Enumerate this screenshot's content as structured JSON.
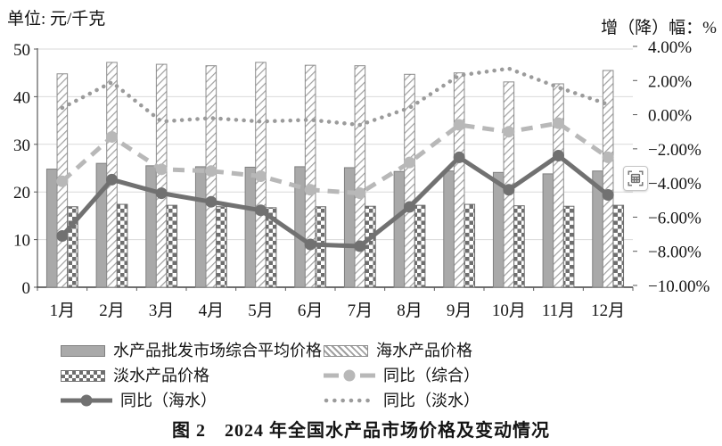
{
  "page": {
    "left_axis_title": "单位: 元/千克",
    "right_axis_title": "增（降）幅：%",
    "caption": "图 2　2024 年全国水产品市场价格及变动情况"
  },
  "overlay_button": {
    "icon": "table-capture-icon"
  },
  "chart_data": {
    "type": "bar+line combo",
    "title": "图 2  2024 年全国水产品市场价格及变动情况",
    "categories": [
      "1月",
      "2月",
      "3月",
      "4月",
      "5月",
      "6月",
      "7月",
      "8月",
      "9月",
      "10月",
      "11月",
      "12月"
    ],
    "left_axis": {
      "title": "单位: 元/千克",
      "min": 0,
      "max": 50,
      "step": 10,
      "tick_labels": [
        "0",
        "10",
        "20",
        "30",
        "40",
        "50"
      ]
    },
    "right_axis": {
      "title": "增（降）幅：%",
      "min": -10,
      "max": 4,
      "step": 2,
      "tick_labels": [
        "4.00%",
        "2.00%",
        "0.00%",
        "−2.00%",
        "−4.00%",
        "−6.00%",
        "−8.00%",
        "−10.00%"
      ]
    },
    "grid": "horizontal, primary axis every 10",
    "legend_position": "bottom, two columns",
    "bar_series": [
      {
        "name": "水产品批发市场综合平均价格",
        "pattern": "solid",
        "values": [
          24.8,
          26.0,
          25.5,
          25.3,
          25.2,
          25.3,
          25.1,
          24.3,
          24.4,
          24.1,
          23.8,
          24.4
        ]
      },
      {
        "name": "海水产品价格",
        "pattern": "diagonal-hatch",
        "values": [
          44.8,
          47.2,
          46.8,
          46.5,
          47.2,
          46.6,
          46.5,
          44.7,
          45.0,
          43.1,
          42.7,
          45.5
        ]
      },
      {
        "name": "淡水产品价格",
        "pattern": "checker",
        "values": [
          16.9,
          17.4,
          17.2,
          16.9,
          16.7,
          16.9,
          17.0,
          17.2,
          17.4,
          17.1,
          17.0,
          17.2
        ]
      }
    ],
    "line_series": [
      {
        "name": "同比（综合）",
        "style": "dashed",
        "axis": "right",
        "values": [
          -3.9,
          -1.3,
          -3.2,
          -3.3,
          -3.6,
          -4.4,
          -4.6,
          -2.8,
          -0.6,
          -1.0,
          -0.5,
          -2.5
        ]
      },
      {
        "name": "同比（海水）",
        "style": "solid",
        "axis": "right",
        "values": [
          -7.1,
          -3.8,
          -4.6,
          -5.1,
          -5.6,
          -7.6,
          -7.7,
          -5.4,
          -2.5,
          -4.4,
          -2.4,
          -4.7
        ]
      },
      {
        "name": "同比（淡水）",
        "style": "dotted",
        "axis": "right",
        "values": [
          0.4,
          1.9,
          -0.4,
          -0.2,
          -0.4,
          -0.3,
          -0.6,
          0.4,
          2.3,
          2.7,
          1.6,
          0.6
        ]
      }
    ],
    "legend": [
      {
        "label": "水产品批发市场综合平均价格",
        "swatch": "bar-solid"
      },
      {
        "label": "海水产品价格",
        "swatch": "bar-hatch"
      },
      {
        "label": "淡水产品价格",
        "swatch": "bar-checker"
      },
      {
        "label": "同比（综合）",
        "swatch": "line-dashed"
      },
      {
        "label": "同比（海水）",
        "swatch": "line-solid"
      },
      {
        "label": "同比（淡水）",
        "swatch": "line-dotted"
      }
    ],
    "colors": {
      "bar_solid": "#a9a9a9",
      "bar_solid_border": "#7f7f7f",
      "hatch_line": "#a0a0a0",
      "hatch_border": "#8c8c8c",
      "checker_dark": "#6e6e6e",
      "line_dashed": "#b8b8b8",
      "line_solid": "#717171",
      "line_dotted": "#9b9b9b",
      "gridline": "#d9d9d9",
      "axis": "#595959",
      "text": "#141414"
    }
  }
}
